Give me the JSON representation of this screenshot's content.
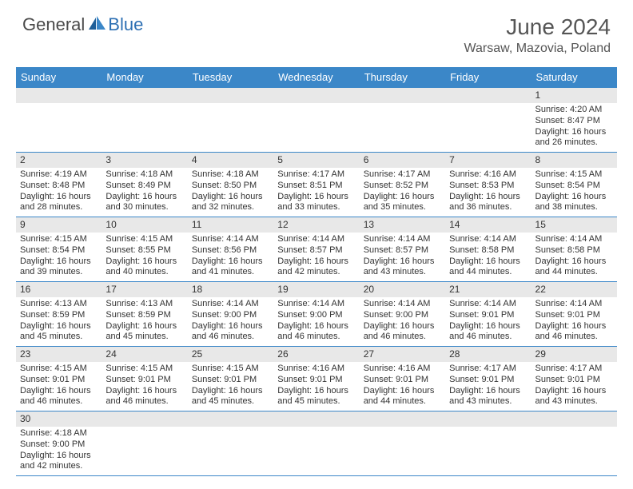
{
  "brand": {
    "part1": "General",
    "part2": "Blue"
  },
  "title": "June 2024",
  "location": "Warsaw, Mazovia, Poland",
  "colors": {
    "header_bg": "#3b87c8",
    "header_text": "#ffffff",
    "daynum_bg": "#e8e8e8",
    "cell_border": "#3b87c8",
    "text": "#333333",
    "logo_gray": "#4a4a4a",
    "logo_blue": "#2c6fb3"
  },
  "day_headers": [
    "Sunday",
    "Monday",
    "Tuesday",
    "Wednesday",
    "Thursday",
    "Friday",
    "Saturday"
  ],
  "weeks": [
    [
      null,
      null,
      null,
      null,
      null,
      null,
      {
        "n": "1",
        "sr": "Sunrise: 4:20 AM",
        "ss": "Sunset: 8:47 PM",
        "d1": "Daylight: 16 hours",
        "d2": "and 26 minutes."
      }
    ],
    [
      {
        "n": "2",
        "sr": "Sunrise: 4:19 AM",
        "ss": "Sunset: 8:48 PM",
        "d1": "Daylight: 16 hours",
        "d2": "and 28 minutes."
      },
      {
        "n": "3",
        "sr": "Sunrise: 4:18 AM",
        "ss": "Sunset: 8:49 PM",
        "d1": "Daylight: 16 hours",
        "d2": "and 30 minutes."
      },
      {
        "n": "4",
        "sr": "Sunrise: 4:18 AM",
        "ss": "Sunset: 8:50 PM",
        "d1": "Daylight: 16 hours",
        "d2": "and 32 minutes."
      },
      {
        "n": "5",
        "sr": "Sunrise: 4:17 AM",
        "ss": "Sunset: 8:51 PM",
        "d1": "Daylight: 16 hours",
        "d2": "and 33 minutes."
      },
      {
        "n": "6",
        "sr": "Sunrise: 4:17 AM",
        "ss": "Sunset: 8:52 PM",
        "d1": "Daylight: 16 hours",
        "d2": "and 35 minutes."
      },
      {
        "n": "7",
        "sr": "Sunrise: 4:16 AM",
        "ss": "Sunset: 8:53 PM",
        "d1": "Daylight: 16 hours",
        "d2": "and 36 minutes."
      },
      {
        "n": "8",
        "sr": "Sunrise: 4:15 AM",
        "ss": "Sunset: 8:54 PM",
        "d1": "Daylight: 16 hours",
        "d2": "and 38 minutes."
      }
    ],
    [
      {
        "n": "9",
        "sr": "Sunrise: 4:15 AM",
        "ss": "Sunset: 8:54 PM",
        "d1": "Daylight: 16 hours",
        "d2": "and 39 minutes."
      },
      {
        "n": "10",
        "sr": "Sunrise: 4:15 AM",
        "ss": "Sunset: 8:55 PM",
        "d1": "Daylight: 16 hours",
        "d2": "and 40 minutes."
      },
      {
        "n": "11",
        "sr": "Sunrise: 4:14 AM",
        "ss": "Sunset: 8:56 PM",
        "d1": "Daylight: 16 hours",
        "d2": "and 41 minutes."
      },
      {
        "n": "12",
        "sr": "Sunrise: 4:14 AM",
        "ss": "Sunset: 8:57 PM",
        "d1": "Daylight: 16 hours",
        "d2": "and 42 minutes."
      },
      {
        "n": "13",
        "sr": "Sunrise: 4:14 AM",
        "ss": "Sunset: 8:57 PM",
        "d1": "Daylight: 16 hours",
        "d2": "and 43 minutes."
      },
      {
        "n": "14",
        "sr": "Sunrise: 4:14 AM",
        "ss": "Sunset: 8:58 PM",
        "d1": "Daylight: 16 hours",
        "d2": "and 44 minutes."
      },
      {
        "n": "15",
        "sr": "Sunrise: 4:14 AM",
        "ss": "Sunset: 8:58 PM",
        "d1": "Daylight: 16 hours",
        "d2": "and 44 minutes."
      }
    ],
    [
      {
        "n": "16",
        "sr": "Sunrise: 4:13 AM",
        "ss": "Sunset: 8:59 PM",
        "d1": "Daylight: 16 hours",
        "d2": "and 45 minutes."
      },
      {
        "n": "17",
        "sr": "Sunrise: 4:13 AM",
        "ss": "Sunset: 8:59 PM",
        "d1": "Daylight: 16 hours",
        "d2": "and 45 minutes."
      },
      {
        "n": "18",
        "sr": "Sunrise: 4:14 AM",
        "ss": "Sunset: 9:00 PM",
        "d1": "Daylight: 16 hours",
        "d2": "and 46 minutes."
      },
      {
        "n": "19",
        "sr": "Sunrise: 4:14 AM",
        "ss": "Sunset: 9:00 PM",
        "d1": "Daylight: 16 hours",
        "d2": "and 46 minutes."
      },
      {
        "n": "20",
        "sr": "Sunrise: 4:14 AM",
        "ss": "Sunset: 9:00 PM",
        "d1": "Daylight: 16 hours",
        "d2": "and 46 minutes."
      },
      {
        "n": "21",
        "sr": "Sunrise: 4:14 AM",
        "ss": "Sunset: 9:01 PM",
        "d1": "Daylight: 16 hours",
        "d2": "and 46 minutes."
      },
      {
        "n": "22",
        "sr": "Sunrise: 4:14 AM",
        "ss": "Sunset: 9:01 PM",
        "d1": "Daylight: 16 hours",
        "d2": "and 46 minutes."
      }
    ],
    [
      {
        "n": "23",
        "sr": "Sunrise: 4:15 AM",
        "ss": "Sunset: 9:01 PM",
        "d1": "Daylight: 16 hours",
        "d2": "and 46 minutes."
      },
      {
        "n": "24",
        "sr": "Sunrise: 4:15 AM",
        "ss": "Sunset: 9:01 PM",
        "d1": "Daylight: 16 hours",
        "d2": "and 46 minutes."
      },
      {
        "n": "25",
        "sr": "Sunrise: 4:15 AM",
        "ss": "Sunset: 9:01 PM",
        "d1": "Daylight: 16 hours",
        "d2": "and 45 minutes."
      },
      {
        "n": "26",
        "sr": "Sunrise: 4:16 AM",
        "ss": "Sunset: 9:01 PM",
        "d1": "Daylight: 16 hours",
        "d2": "and 45 minutes."
      },
      {
        "n": "27",
        "sr": "Sunrise: 4:16 AM",
        "ss": "Sunset: 9:01 PM",
        "d1": "Daylight: 16 hours",
        "d2": "and 44 minutes."
      },
      {
        "n": "28",
        "sr": "Sunrise: 4:17 AM",
        "ss": "Sunset: 9:01 PM",
        "d1": "Daylight: 16 hours",
        "d2": "and 43 minutes."
      },
      {
        "n": "29",
        "sr": "Sunrise: 4:17 AM",
        "ss": "Sunset: 9:01 PM",
        "d1": "Daylight: 16 hours",
        "d2": "and 43 minutes."
      }
    ],
    [
      {
        "n": "30",
        "sr": "Sunrise: 4:18 AM",
        "ss": "Sunset: 9:00 PM",
        "d1": "Daylight: 16 hours",
        "d2": "and 42 minutes."
      },
      null,
      null,
      null,
      null,
      null,
      null
    ]
  ]
}
